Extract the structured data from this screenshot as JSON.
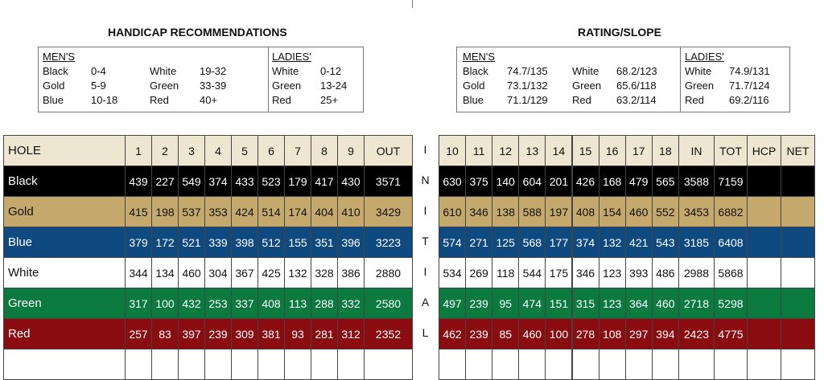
{
  "handicap": {
    "title": "HANDICAP RECOMMENDATIONS",
    "mens": {
      "heading": "MEN'S",
      "rows": [
        [
          "Black",
          "0-4",
          "White",
          "19-32"
        ],
        [
          "Gold",
          "5-9",
          "Green",
          "33-39"
        ],
        [
          "Blue",
          "10-18",
          "Red",
          "40+"
        ]
      ]
    },
    "ladies": {
      "heading": "LADIES'",
      "rows": [
        [
          "White",
          "0-12"
        ],
        [
          "Green",
          "13-24"
        ],
        [
          "Red",
          "25+"
        ]
      ]
    }
  },
  "rating": {
    "title": "RATING/SLOPE",
    "mens": {
      "heading": "MEN'S",
      "rows": [
        [
          "Black",
          "74.7/135",
          "White",
          "68.2/123"
        ],
        [
          "Gold",
          "73.1/132",
          "Green",
          "65.6/118"
        ],
        [
          "Blue",
          "71.1/129",
          "Red",
          "63.2/114"
        ]
      ]
    },
    "ladies": {
      "heading": "LADIES'",
      "rows": [
        [
          "White",
          "74.9/131"
        ],
        [
          "Green",
          "71.7/124"
        ],
        [
          "Red",
          "69.2/116"
        ]
      ]
    }
  },
  "scorecard": {
    "front_header": [
      "HOLE",
      "1",
      "2",
      "3",
      "4",
      "5",
      "6",
      "7",
      "8",
      "9",
      "OUT"
    ],
    "back_header": [
      "10",
      "11",
      "12",
      "13",
      "14",
      "15",
      "16",
      "17",
      "18",
      "IN",
      "TOT",
      "HCP",
      "NET"
    ],
    "initial": [
      "I",
      "N",
      "I",
      "T",
      "I",
      "A",
      "L"
    ],
    "rows": [
      {
        "name": "Black",
        "color": "#000000",
        "text_color": "#ffffff",
        "front": [
          439,
          227,
          549,
          374,
          433,
          523,
          179,
          417,
          430,
          3571
        ],
        "back": [
          630,
          375,
          140,
          604,
          201,
          426,
          168,
          479,
          565,
          3588,
          7159
        ]
      },
      {
        "name": "Gold",
        "color": "#c4a86c",
        "text_color": "#111111",
        "front": [
          415,
          198,
          537,
          353,
          424,
          514,
          174,
          404,
          410,
          3429
        ],
        "back": [
          610,
          346,
          138,
          588,
          197,
          408,
          154,
          460,
          552,
          3453,
          6882
        ]
      },
      {
        "name": "Blue",
        "color": "#0e4a80",
        "text_color": "#ffffff",
        "front": [
          379,
          172,
          521,
          339,
          398,
          512,
          155,
          351,
          396,
          3223
        ],
        "back": [
          574,
          271,
          125,
          568,
          177,
          374,
          132,
          421,
          543,
          3185,
          6408
        ]
      },
      {
        "name": "White",
        "color": "#ffffff",
        "text_color": "#111111",
        "front": [
          344,
          134,
          460,
          304,
          367,
          425,
          132,
          328,
          386,
          2880
        ],
        "back": [
          534,
          269,
          118,
          544,
          175,
          346,
          123,
          393,
          486,
          2988,
          5868
        ]
      },
      {
        "name": "Green",
        "color": "#0a7a3e",
        "text_color": "#ffffff",
        "front": [
          317,
          100,
          432,
          253,
          337,
          408,
          113,
          288,
          332,
          2580
        ],
        "back": [
          497,
          239,
          95,
          474,
          151,
          315,
          123,
          364,
          460,
          2718,
          5298
        ]
      },
      {
        "name": "Red",
        "color": "#8a0c10",
        "text_color": "#ffffff",
        "front": [
          257,
          83,
          397,
          239,
          309,
          381,
          93,
          281,
          312,
          2352
        ],
        "back": [
          462,
          239,
          85,
          460,
          100,
          278,
          108,
          297,
          394,
          2423,
          4775
        ]
      }
    ]
  }
}
